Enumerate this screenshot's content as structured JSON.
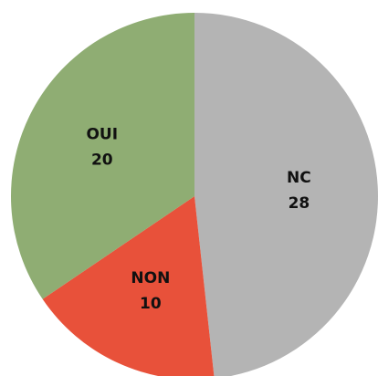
{
  "chart_data": {
    "type": "pie",
    "categories": [
      "NC",
      "NON",
      "OUI"
    ],
    "values": [
      28,
      10,
      20
    ],
    "colors": [
      "#b4b4b4",
      "#e8513a",
      "#8fad73"
    ]
  }
}
